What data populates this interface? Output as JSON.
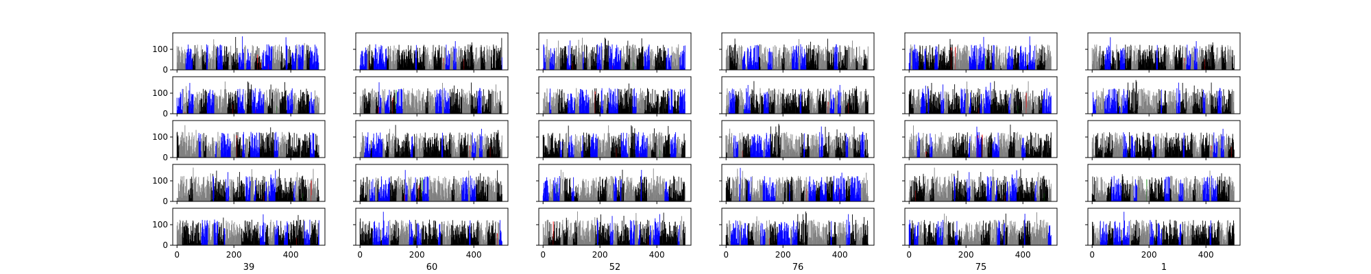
{
  "chart_data": {
    "type": "bar",
    "layout": {
      "rows": 5,
      "columns": 6,
      "share_y_within_row": true,
      "share_x_within_column": true
    },
    "column_labels": [
      "39",
      "60",
      "52",
      "76",
      "75",
      "1"
    ],
    "x_range": [
      -15,
      520
    ],
    "x_ticks": [
      0,
      200,
      400
    ],
    "x_tick_labels": [
      "0",
      "200",
      "400"
    ],
    "y_range": [
      0,
      180
    ],
    "y_ticks": [
      0,
      100
    ],
    "y_tick_labels": [
      "0",
      "100"
    ],
    "bars_per_panel": 500,
    "bar_colors": {
      "black": "#000000",
      "gray": "#808080",
      "blue": "#0000ff",
      "red": "#ff0000",
      "green": "#008000"
    },
    "frame_color": "#000000",
    "background": "#ffffff"
  }
}
